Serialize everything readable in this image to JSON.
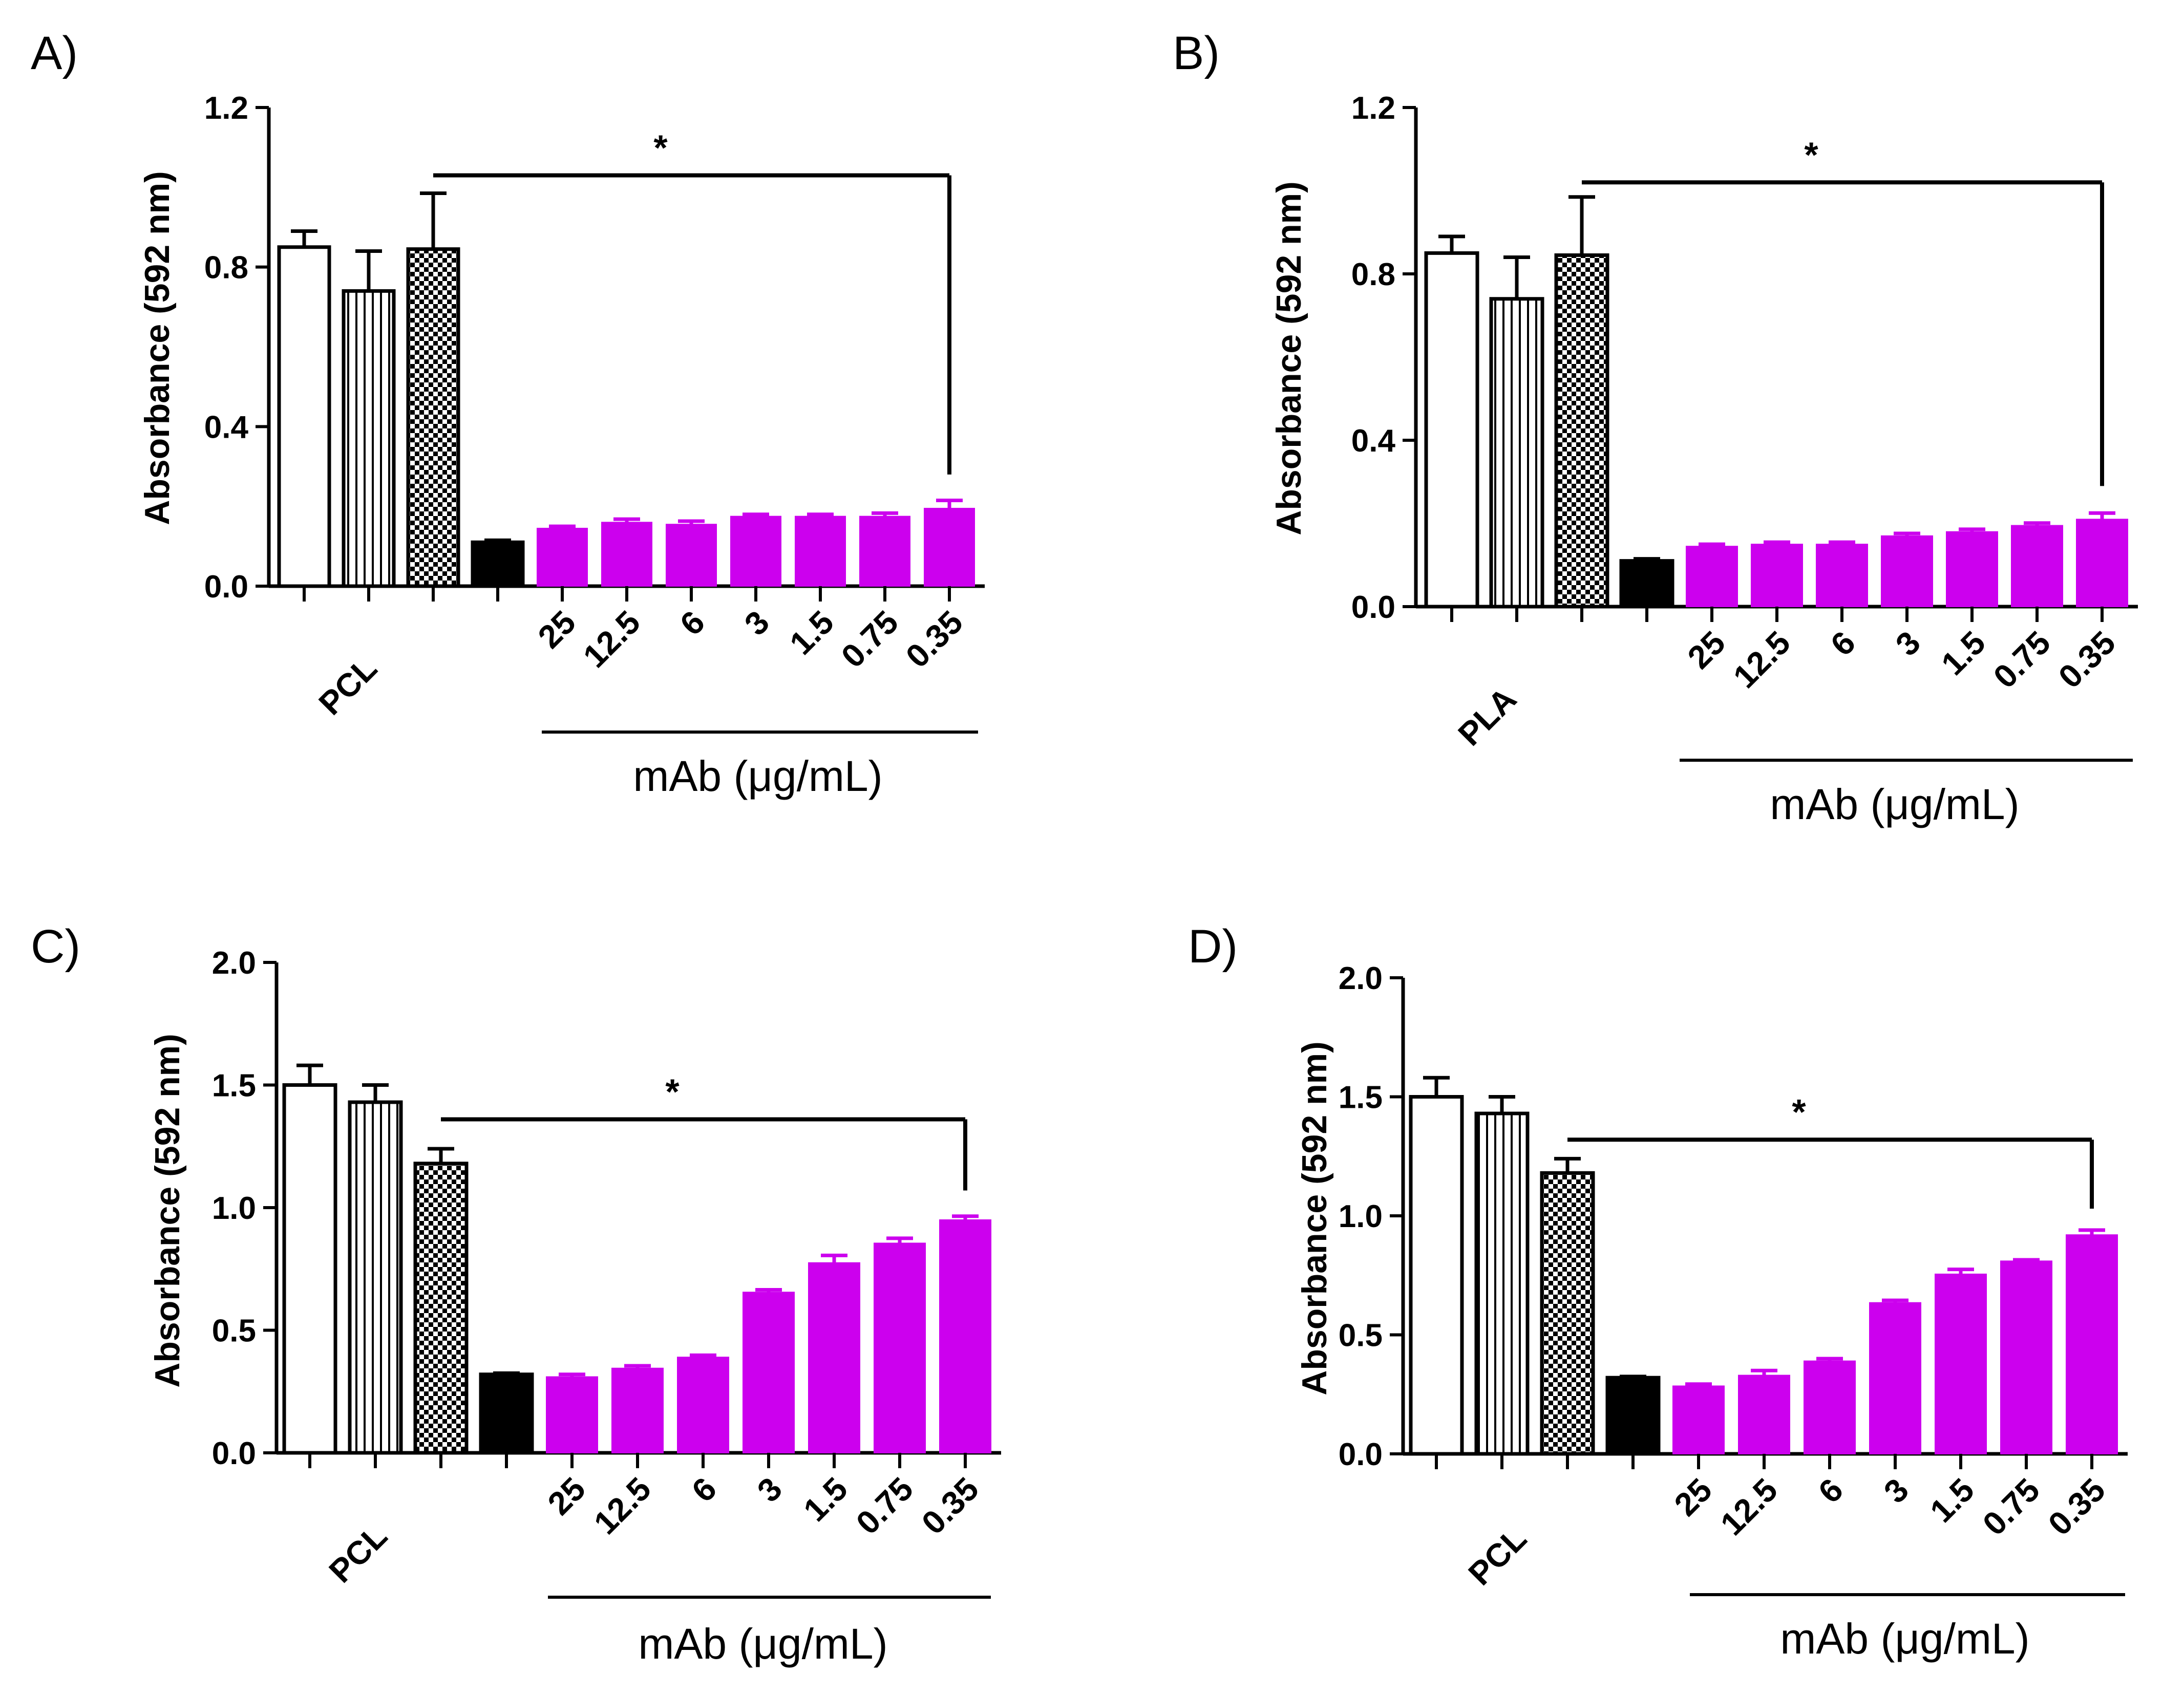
{
  "chart_data": [
    {
      "type": "bar",
      "panel": "A)",
      "ylabel": "Absorbance (592 nm)",
      "ylim": [
        0,
        1.2
      ],
      "yticks": [
        "0.0",
        "0.4",
        "0.8",
        "1.2"
      ],
      "material_label": "PCL",
      "group_label": "mAb (μg/mL)",
      "significance": "*",
      "bars": [
        {
          "fill": "white",
          "value": 0.85,
          "error": 0.04
        },
        {
          "fill": "vstripe",
          "value": 0.74,
          "error": 0.1
        },
        {
          "fill": "checker",
          "value": 0.845,
          "error": 0.14
        },
        {
          "fill": "black",
          "value": 0.11,
          "error": 0.005
        },
        {
          "fill": "magenta",
          "label": "25",
          "value": 0.145,
          "error": 0.005
        },
        {
          "fill": "magenta",
          "label": "12.5",
          "value": 0.16,
          "error": 0.008
        },
        {
          "fill": "magenta",
          "label": "6",
          "value": 0.155,
          "error": 0.008
        },
        {
          "fill": "magenta",
          "label": "3",
          "value": 0.175,
          "error": 0.005
        },
        {
          "fill": "magenta",
          "label": "1.5",
          "value": 0.175,
          "error": 0.005
        },
        {
          "fill": "magenta",
          "label": "0.75",
          "value": 0.175,
          "error": 0.008
        },
        {
          "fill": "magenta",
          "label": "0.35",
          "value": 0.195,
          "error": 0.02
        }
      ],
      "significance_bar": {
        "y": 1.03,
        "end_y": 0.28
      }
    },
    {
      "type": "bar",
      "panel": "B)",
      "ylabel": "Absorbance (592 nm)",
      "ylim": [
        0,
        1.2
      ],
      "yticks": [
        "0.0",
        "0.4",
        "0.8",
        "1.2"
      ],
      "material_label": "PLA",
      "group_label": "mAb (μg/mL)",
      "significance": "*",
      "bars": [
        {
          "fill": "white",
          "value": 0.85,
          "error": 0.04
        },
        {
          "fill": "vstripe",
          "value": 0.74,
          "error": 0.1
        },
        {
          "fill": "checker",
          "value": 0.845,
          "error": 0.14
        },
        {
          "fill": "black",
          "value": 0.11,
          "error": 0.005
        },
        {
          "fill": "magenta",
          "label": "25",
          "value": 0.145,
          "error": 0.005
        },
        {
          "fill": "magenta",
          "label": "12.5",
          "value": 0.15,
          "error": 0.005
        },
        {
          "fill": "magenta",
          "label": "6",
          "value": 0.15,
          "error": 0.005
        },
        {
          "fill": "magenta",
          "label": "3",
          "value": 0.17,
          "error": 0.006
        },
        {
          "fill": "magenta",
          "label": "1.5",
          "value": 0.18,
          "error": 0.006
        },
        {
          "fill": "magenta",
          "label": "0.75",
          "value": 0.195,
          "error": 0.006
        },
        {
          "fill": "magenta",
          "label": "0.35",
          "value": 0.21,
          "error": 0.015
        }
      ],
      "significance_bar": {
        "y": 1.02,
        "end_y": 0.29
      }
    },
    {
      "type": "bar",
      "panel": "C)",
      "ylabel": "Absorbance (592 nm)",
      "ylim": [
        0,
        2.0
      ],
      "yticks": [
        "0.0",
        "0.5",
        "1.0",
        "1.5",
        "2.0"
      ],
      "material_label": "PCL",
      "group_label": "mAb (μg/mL)",
      "significance": "*",
      "bars": [
        {
          "fill": "white",
          "value": 1.5,
          "error": 0.08
        },
        {
          "fill": "vstripe",
          "value": 1.43,
          "error": 0.07
        },
        {
          "fill": "checker",
          "value": 1.18,
          "error": 0.06
        },
        {
          "fill": "black",
          "value": 0.32,
          "error": 0.005
        },
        {
          "fill": "magenta",
          "label": "25",
          "value": 0.31,
          "error": 0.01
        },
        {
          "fill": "magenta",
          "label": "12.5",
          "value": 0.345,
          "error": 0.01
        },
        {
          "fill": "magenta",
          "label": "6",
          "value": 0.39,
          "error": 0.008
        },
        {
          "fill": "magenta",
          "label": "3",
          "value": 0.655,
          "error": 0.01
        },
        {
          "fill": "magenta",
          "label": "1.5",
          "value": 0.775,
          "error": 0.03
        },
        {
          "fill": "magenta",
          "label": "0.75",
          "value": 0.855,
          "error": 0.02
        },
        {
          "fill": "magenta",
          "label": "0.35",
          "value": 0.95,
          "error": 0.015
        }
      ],
      "significance_bar": {
        "y": 1.36,
        "end_y": 1.07
      }
    },
    {
      "type": "bar",
      "panel": "D)",
      "ylabel": "Absorbance (592 nm)",
      "ylim": [
        0,
        2.0
      ],
      "yticks": [
        "0.0",
        "0.5",
        "1.0",
        "1.5",
        "2.0"
      ],
      "material_label": "PCL",
      "group_label": "mAb (μg/mL)",
      "significance": "*",
      "bars": [
        {
          "fill": "white",
          "value": 1.5,
          "error": 0.08
        },
        {
          "fill": "vstripe",
          "value": 1.43,
          "error": 0.07
        },
        {
          "fill": "checker",
          "value": 1.18,
          "error": 0.06
        },
        {
          "fill": "black",
          "value": 0.32,
          "error": 0.005
        },
        {
          "fill": "magenta",
          "label": "25",
          "value": 0.285,
          "error": 0.008
        },
        {
          "fill": "magenta",
          "label": "12.5",
          "value": 0.33,
          "error": 0.02
        },
        {
          "fill": "magenta",
          "label": "6",
          "value": 0.39,
          "error": 0.01
        },
        {
          "fill": "magenta",
          "label": "3",
          "value": 0.635,
          "error": 0.01
        },
        {
          "fill": "magenta",
          "label": "1.5",
          "value": 0.755,
          "error": 0.02
        },
        {
          "fill": "magenta",
          "label": "0.75",
          "value": 0.81,
          "error": 0.005
        },
        {
          "fill": "magenta",
          "label": "0.35",
          "value": 0.92,
          "error": 0.02
        }
      ],
      "significance_bar": {
        "y": 1.32,
        "end_y": 1.03
      }
    }
  ],
  "colors": {
    "magenta": "#CC00EE",
    "black": "#000000",
    "axis": "#000000"
  }
}
